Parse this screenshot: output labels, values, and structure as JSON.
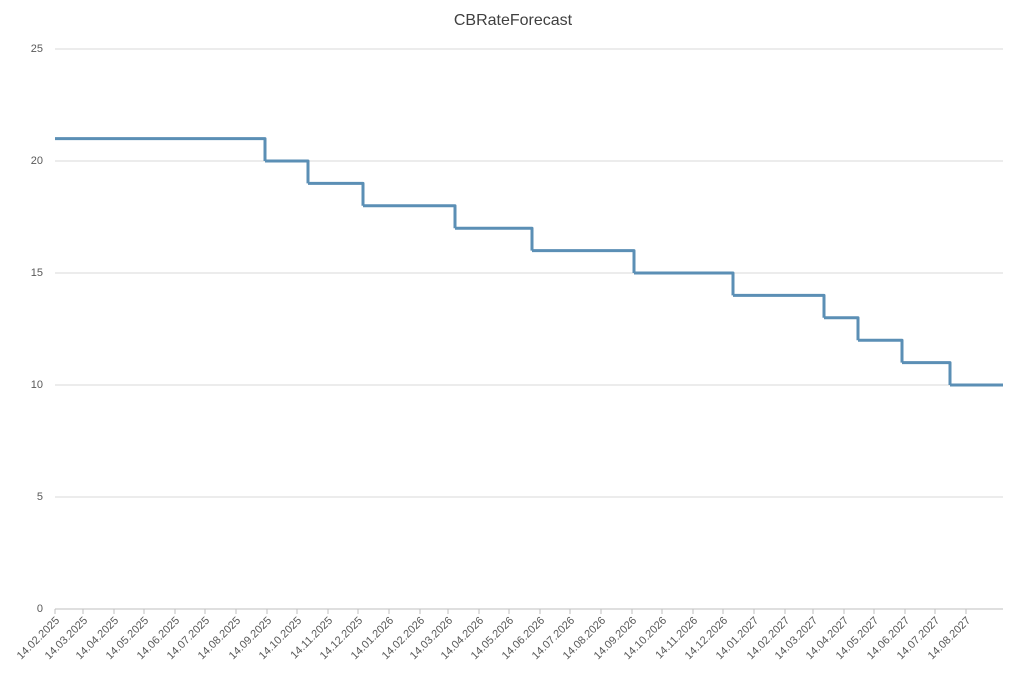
{
  "chart_data": {
    "type": "step",
    "title": "CBRateForecast",
    "x": [
      "14.02.2025",
      "12.09.2025",
      "25.10.2025",
      "19.12.2025",
      "21.03.2026",
      "06.06.2026",
      "16.09.2026",
      "24.12.2026",
      "25.03.2027",
      "28.04.2027",
      "11.06.2027",
      "29.07.2027"
    ],
    "values": [
      21,
      20,
      19,
      18,
      17,
      16,
      15,
      14,
      13,
      12,
      11,
      10
    ],
    "color": "#5b8fb5",
    "xlim": [
      "14.02.2025",
      "20.09.2027"
    ],
    "xticks": [
      "14.02.2025",
      "14.03.2025",
      "14.04.2025",
      "14.05.2025",
      "14.06.2025",
      "14.07.2025",
      "14.08.2025",
      "14.09.2025",
      "14.10.2025",
      "14.11.2025",
      "14.12.2025",
      "14.01.2026",
      "14.02.2026",
      "14.03.2026",
      "14.04.2026",
      "14.05.2026",
      "14.06.2026",
      "14.07.2026",
      "14.08.2026",
      "14.09.2026",
      "14.10.2026",
      "14.11.2026",
      "14.12.2026",
      "14.01.2027",
      "14.02.2027",
      "14.03.2027",
      "14.04.2027",
      "14.05.2027",
      "14.06.2027",
      "14.07.2027",
      "14.08.2027"
    ],
    "ylim": [
      0,
      25
    ],
    "yticks": [
      0,
      5,
      10,
      15,
      20,
      25
    ],
    "grid": true
  }
}
